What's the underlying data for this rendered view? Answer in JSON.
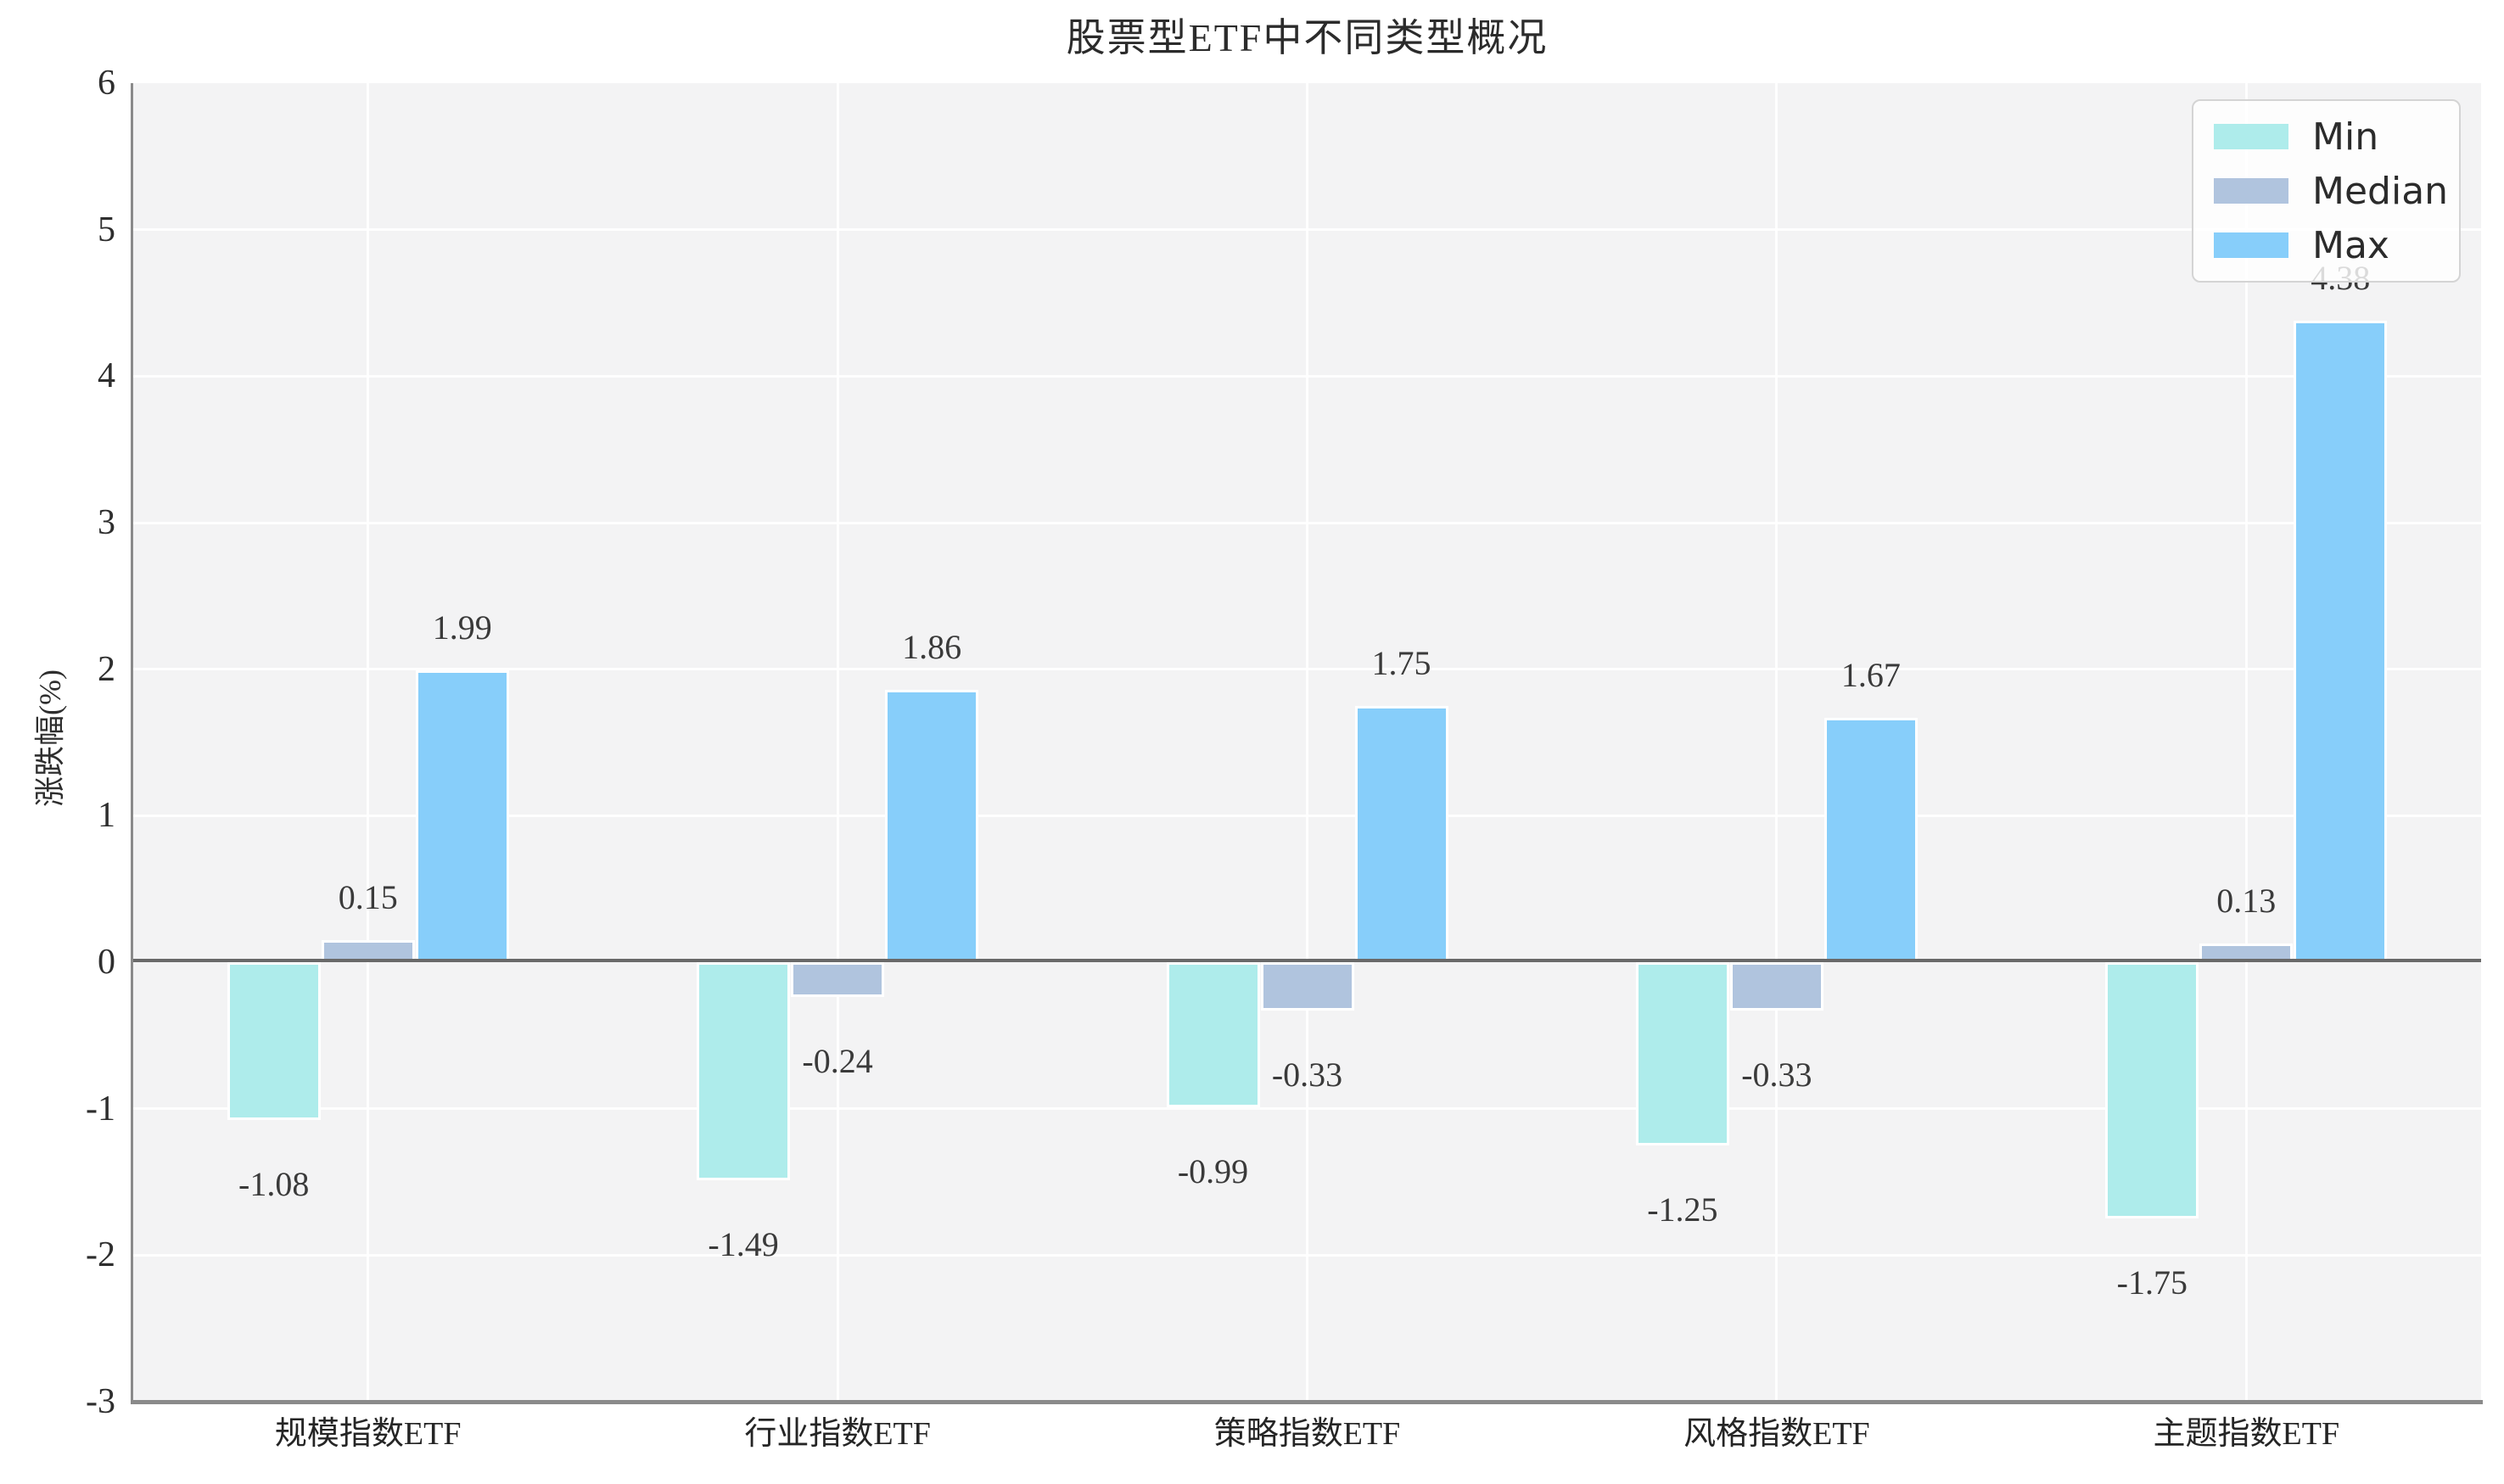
{
  "chart_data": {
    "type": "bar",
    "title": "股票型ETF中不同类型概况",
    "ylabel": "涨跌幅(%)",
    "categories": [
      "规模指数ETF",
      "行业指数ETF",
      "策略指数ETF",
      "风格指数ETF",
      "主题指数ETF"
    ],
    "series": [
      {
        "name": "Min",
        "color": "#aeeceb",
        "values": [
          -1.08,
          -1.49,
          -0.99,
          -1.25,
          -1.75
        ]
      },
      {
        "name": "Median",
        "color": "#b0c4de",
        "values": [
          0.15,
          -0.24,
          -0.33,
          -0.33,
          0.13
        ]
      },
      {
        "name": "Max",
        "color": "#87cefa",
        "values": [
          1.99,
          1.86,
          1.75,
          1.67,
          4.38
        ]
      }
    ],
    "ylim": [
      -3,
      6
    ],
    "yticks": [
      6,
      5,
      4,
      3,
      2,
      1,
      0,
      -1,
      -2,
      -3
    ],
    "grid": true,
    "legend_position": "upper right",
    "value_labels": true
  },
  "colors": {
    "plot_background": "#f3f3f4",
    "gridline": "#ffffff",
    "zero_line": "#696969",
    "spine": "#8a8a8a",
    "text": "#2e2e2e"
  }
}
